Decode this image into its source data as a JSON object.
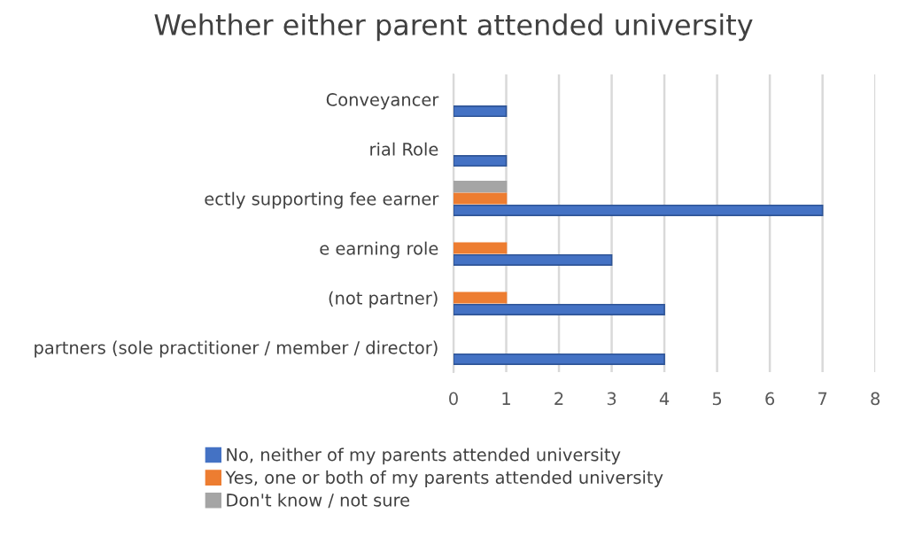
{
  "chart_data": {
    "type": "bar",
    "orientation": "horizontal",
    "title": "Wehther either parent attended university",
    "categories": [
      "Conveyancer",
      "rial Role",
      "ectly supporting fee earner",
      "e earning role",
      "(not partner)",
      "partners (sole practitioner / member / director)"
    ],
    "series": [
      {
        "name": "No, neither of my parents attended university",
        "color": "#4472c4",
        "values": [
          1,
          1,
          7,
          3,
          4,
          4
        ]
      },
      {
        "name": "Yes, one or both of my parents attended university",
        "color": "#ed7d31",
        "values": [
          null,
          null,
          1,
          1,
          1,
          null
        ]
      },
      {
        "name": "Don't know / not sure",
        "color": "#a5a5a5",
        "values": [
          null,
          null,
          1,
          null,
          null,
          null
        ]
      }
    ],
    "xlim": [
      0,
      8
    ],
    "xticks": [
      0,
      1,
      2,
      3,
      4,
      5,
      6,
      7,
      8
    ],
    "grid": "x",
    "legend": "bottom"
  }
}
